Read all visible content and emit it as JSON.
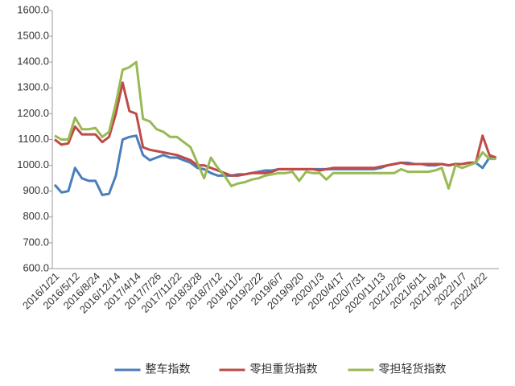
{
  "chart_data": {
    "type": "line",
    "categories": [
      "2016/1/21",
      null,
      null,
      "2016/5/12",
      null,
      null,
      "2016/8/24",
      null,
      null,
      "2016/12/14",
      null,
      null,
      "2017/4/14",
      null,
      null,
      "2017/7/26",
      null,
      null,
      "2017/11/22",
      null,
      null,
      "2018/3/28",
      null,
      null,
      "2018/7/12",
      null,
      null,
      "2018/11/2",
      null,
      null,
      "2019/2/22",
      null,
      null,
      "2019/6/7",
      null,
      null,
      "2019/9/20",
      null,
      null,
      "2020/1/3",
      null,
      null,
      "2020/4/17",
      null,
      null,
      "2020/7/31",
      null,
      null,
      "2020/11/13",
      null,
      null,
      "2021/2/26",
      null,
      null,
      "2021/6/11",
      null,
      null,
      "2021/9/24",
      null,
      null,
      "2022/1/7",
      null,
      null,
      "2022/4/22",
      null,
      null
    ],
    "series": [
      {
        "name": "整车指数",
        "color": "#4a7ebb",
        "values": [
          925,
          895,
          900,
          990,
          950,
          940,
          940,
          885,
          890,
          960,
          1100,
          1110,
          1115,
          1040,
          1020,
          1030,
          1040,
          1030,
          1030,
          1020,
          1010,
          990,
          985,
          970,
          960,
          960,
          960,
          965,
          965,
          970,
          975,
          980,
          980,
          985,
          985,
          985,
          985,
          985,
          985,
          985,
          985,
          985,
          985,
          985,
          985,
          985,
          985,
          985,
          990,
          1000,
          1005,
          1010,
          1010,
          1005,
          1005,
          1000,
          1000,
          1005,
          1000,
          1005,
          1005,
          1010,
          1010,
          990,
          1030,
          1025
        ]
      },
      {
        "name": "零担重货指数",
        "color": "#be4b48",
        "values": [
          1100,
          1080,
          1085,
          1150,
          1120,
          1120,
          1120,
          1090,
          1110,
          1200,
          1320,
          1210,
          1200,
          1070,
          1060,
          1055,
          1050,
          1045,
          1040,
          1030,
          1020,
          1000,
          1000,
          990,
          980,
          970,
          960,
          960,
          965,
          970,
          970,
          970,
          975,
          985,
          985,
          985,
          985,
          985,
          985,
          980,
          985,
          990,
          990,
          990,
          990,
          990,
          990,
          990,
          995,
          1000,
          1005,
          1010,
          1005,
          1005,
          1005,
          1005,
          1005,
          1005,
          1000,
          1005,
          1005,
          1010,
          1010,
          1115,
          1040,
          1030
        ]
      },
      {
        "name": "零担轻货指数",
        "color": "#98b954",
        "values": [
          1115,
          1100,
          1100,
          1185,
          1140,
          1140,
          1145,
          1110,
          1130,
          1240,
          1370,
          1380,
          1400,
          1180,
          1170,
          1140,
          1130,
          1110,
          1110,
          1090,
          1070,
          1010,
          950,
          1030,
          990,
          960,
          920,
          930,
          935,
          945,
          950,
          960,
          965,
          970,
          970,
          975,
          940,
          975,
          970,
          970,
          945,
          970,
          970,
          970,
          970,
          970,
          970,
          970,
          970,
          970,
          970,
          985,
          975,
          975,
          975,
          975,
          980,
          990,
          910,
          1000,
          990,
          1000,
          1010,
          1050,
          1025,
          1025
        ]
      }
    ],
    "ylim": [
      600,
      1600
    ],
    "yticks": [
      {
        "value": 600,
        "label": "600.0"
      },
      {
        "value": 700,
        "label": "700.0"
      },
      {
        "value": 800,
        "label": "800.0"
      },
      {
        "value": 900,
        "label": "900.0"
      },
      {
        "value": 1000,
        "label": "1000.0"
      },
      {
        "value": 1100,
        "label": "1100.0"
      },
      {
        "value": 1200,
        "label": "1200.0"
      },
      {
        "value": 1300,
        "label": "1300.0"
      },
      {
        "value": 1400,
        "label": "1400.0"
      },
      {
        "value": 1500,
        "label": "1500.0"
      },
      {
        "value": 1600,
        "label": "1600.0"
      }
    ],
    "grid": false,
    "legend": "bottom"
  }
}
